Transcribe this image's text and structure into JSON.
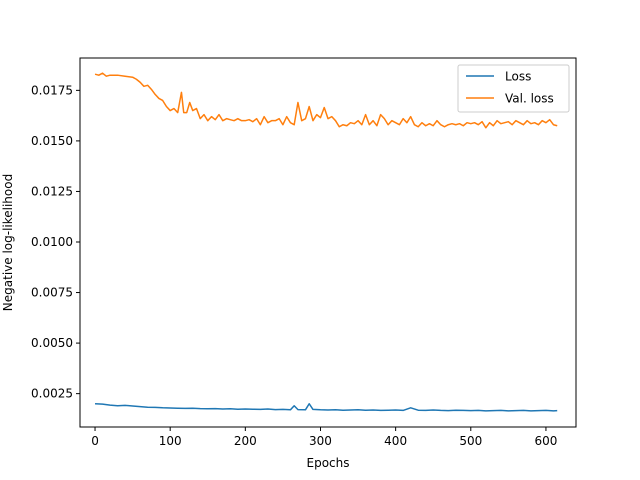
{
  "chart_data": {
    "type": "line",
    "title": "",
    "xlabel": "Epochs",
    "ylabel": "Negative log-likelihood",
    "xlim": [
      -20,
      640
    ],
    "ylim": [
      0.00085,
      0.0191
    ],
    "xticks": [
      0,
      100,
      200,
      300,
      400,
      500,
      600
    ],
    "xtick_labels": [
      "0",
      "100",
      "200",
      "300",
      "400",
      "500",
      "600"
    ],
    "yticks": [
      0.0025,
      0.005,
      0.0075,
      0.01,
      0.0125,
      0.015,
      0.0175
    ],
    "ytick_labels": [
      "0.0025",
      "0.0050",
      "0.0075",
      "0.0100",
      "0.0125",
      "0.0150",
      "0.0175"
    ],
    "grid": false,
    "legend_position": "top-right",
    "series": [
      {
        "name": "Loss",
        "color": "#1f77b4",
        "x": [
          0,
          10,
          20,
          30,
          40,
          50,
          60,
          70,
          80,
          90,
          100,
          110,
          120,
          130,
          140,
          150,
          160,
          170,
          180,
          190,
          200,
          210,
          220,
          230,
          240,
          250,
          260,
          265,
          270,
          280,
          285,
          290,
          300,
          310,
          320,
          330,
          340,
          350,
          360,
          370,
          380,
          390,
          400,
          410,
          420,
          430,
          440,
          450,
          460,
          470,
          480,
          490,
          500,
          510,
          520,
          530,
          540,
          550,
          560,
          570,
          580,
          590,
          600,
          610,
          615
        ],
        "y": [
          0.002,
          0.00198,
          0.00193,
          0.0019,
          0.00192,
          0.00189,
          0.00186,
          0.00183,
          0.00182,
          0.0018,
          0.00179,
          0.00178,
          0.00177,
          0.00178,
          0.00176,
          0.00175,
          0.00176,
          0.00174,
          0.00175,
          0.00173,
          0.00174,
          0.00173,
          0.00172,
          0.00174,
          0.00171,
          0.00172,
          0.0017,
          0.0019,
          0.00171,
          0.0017,
          0.002,
          0.00172,
          0.0017,
          0.00169,
          0.0017,
          0.00168,
          0.00169,
          0.0017,
          0.00168,
          0.00169,
          0.00167,
          0.00168,
          0.00169,
          0.00167,
          0.0018,
          0.00168,
          0.00167,
          0.00169,
          0.00167,
          0.00166,
          0.00168,
          0.00167,
          0.00166,
          0.00167,
          0.00165,
          0.00166,
          0.00167,
          0.00165,
          0.00166,
          0.00167,
          0.00165,
          0.00166,
          0.00167,
          0.00165,
          0.00166
        ]
      },
      {
        "name": "Val. loss",
        "color": "#ff7f0e",
        "x": [
          0,
          5,
          10,
          15,
          20,
          30,
          40,
          50,
          55,
          60,
          65,
          70,
          75,
          80,
          85,
          90,
          95,
          100,
          105,
          110,
          115,
          118,
          122,
          126,
          130,
          135,
          140,
          145,
          150,
          155,
          160,
          165,
          170,
          175,
          180,
          185,
          190,
          195,
          200,
          205,
          210,
          215,
          220,
          225,
          230,
          235,
          240,
          245,
          250,
          255,
          260,
          265,
          270,
          275,
          280,
          285,
          290,
          295,
          300,
          305,
          310,
          315,
          320,
          325,
          330,
          335,
          340,
          345,
          350,
          355,
          360,
          365,
          370,
          375,
          380,
          385,
          390,
          395,
          400,
          405,
          410,
          415,
          420,
          425,
          430,
          435,
          440,
          445,
          450,
          455,
          460,
          465,
          470,
          475,
          480,
          485,
          490,
          495,
          500,
          505,
          510,
          515,
          520,
          525,
          530,
          535,
          540,
          545,
          550,
          555,
          560,
          565,
          570,
          575,
          580,
          585,
          590,
          595,
          600,
          605,
          610,
          615
        ],
        "y": [
          0.0183,
          0.01825,
          0.01835,
          0.0182,
          0.01825,
          0.01825,
          0.0182,
          0.01815,
          0.01805,
          0.0179,
          0.0177,
          0.01775,
          0.01755,
          0.0173,
          0.0171,
          0.017,
          0.0167,
          0.0165,
          0.0166,
          0.0164,
          0.0174,
          0.0164,
          0.0164,
          0.0169,
          0.0165,
          0.0166,
          0.0161,
          0.0163,
          0.016,
          0.0162,
          0.01605,
          0.0163,
          0.016,
          0.0161,
          0.01605,
          0.016,
          0.0161,
          0.016,
          0.016,
          0.01605,
          0.01595,
          0.0161,
          0.0158,
          0.0162,
          0.0159,
          0.016,
          0.016,
          0.0161,
          0.0158,
          0.0162,
          0.0159,
          0.0158,
          0.0169,
          0.016,
          0.0161,
          0.0167,
          0.016,
          0.0163,
          0.01615,
          0.01665,
          0.0161,
          0.0162,
          0.016,
          0.0157,
          0.0158,
          0.01575,
          0.0159,
          0.01585,
          0.016,
          0.0158,
          0.0163,
          0.0158,
          0.016,
          0.01575,
          0.0163,
          0.0161,
          0.0158,
          0.016,
          0.0159,
          0.0158,
          0.0161,
          0.0159,
          0.0162,
          0.0158,
          0.0157,
          0.0159,
          0.01575,
          0.01585,
          0.01575,
          0.016,
          0.0158,
          0.0157,
          0.0158,
          0.01585,
          0.0158,
          0.01585,
          0.01575,
          0.0159,
          0.01585,
          0.0159,
          0.0158,
          0.01595,
          0.01565,
          0.0159,
          0.01575,
          0.016,
          0.01585,
          0.0159,
          0.01595,
          0.0158,
          0.016,
          0.0159,
          0.0158,
          0.016,
          0.01585,
          0.0159,
          0.0158,
          0.016,
          0.0159,
          0.01605,
          0.0158,
          0.01575
        ]
      }
    ]
  }
}
